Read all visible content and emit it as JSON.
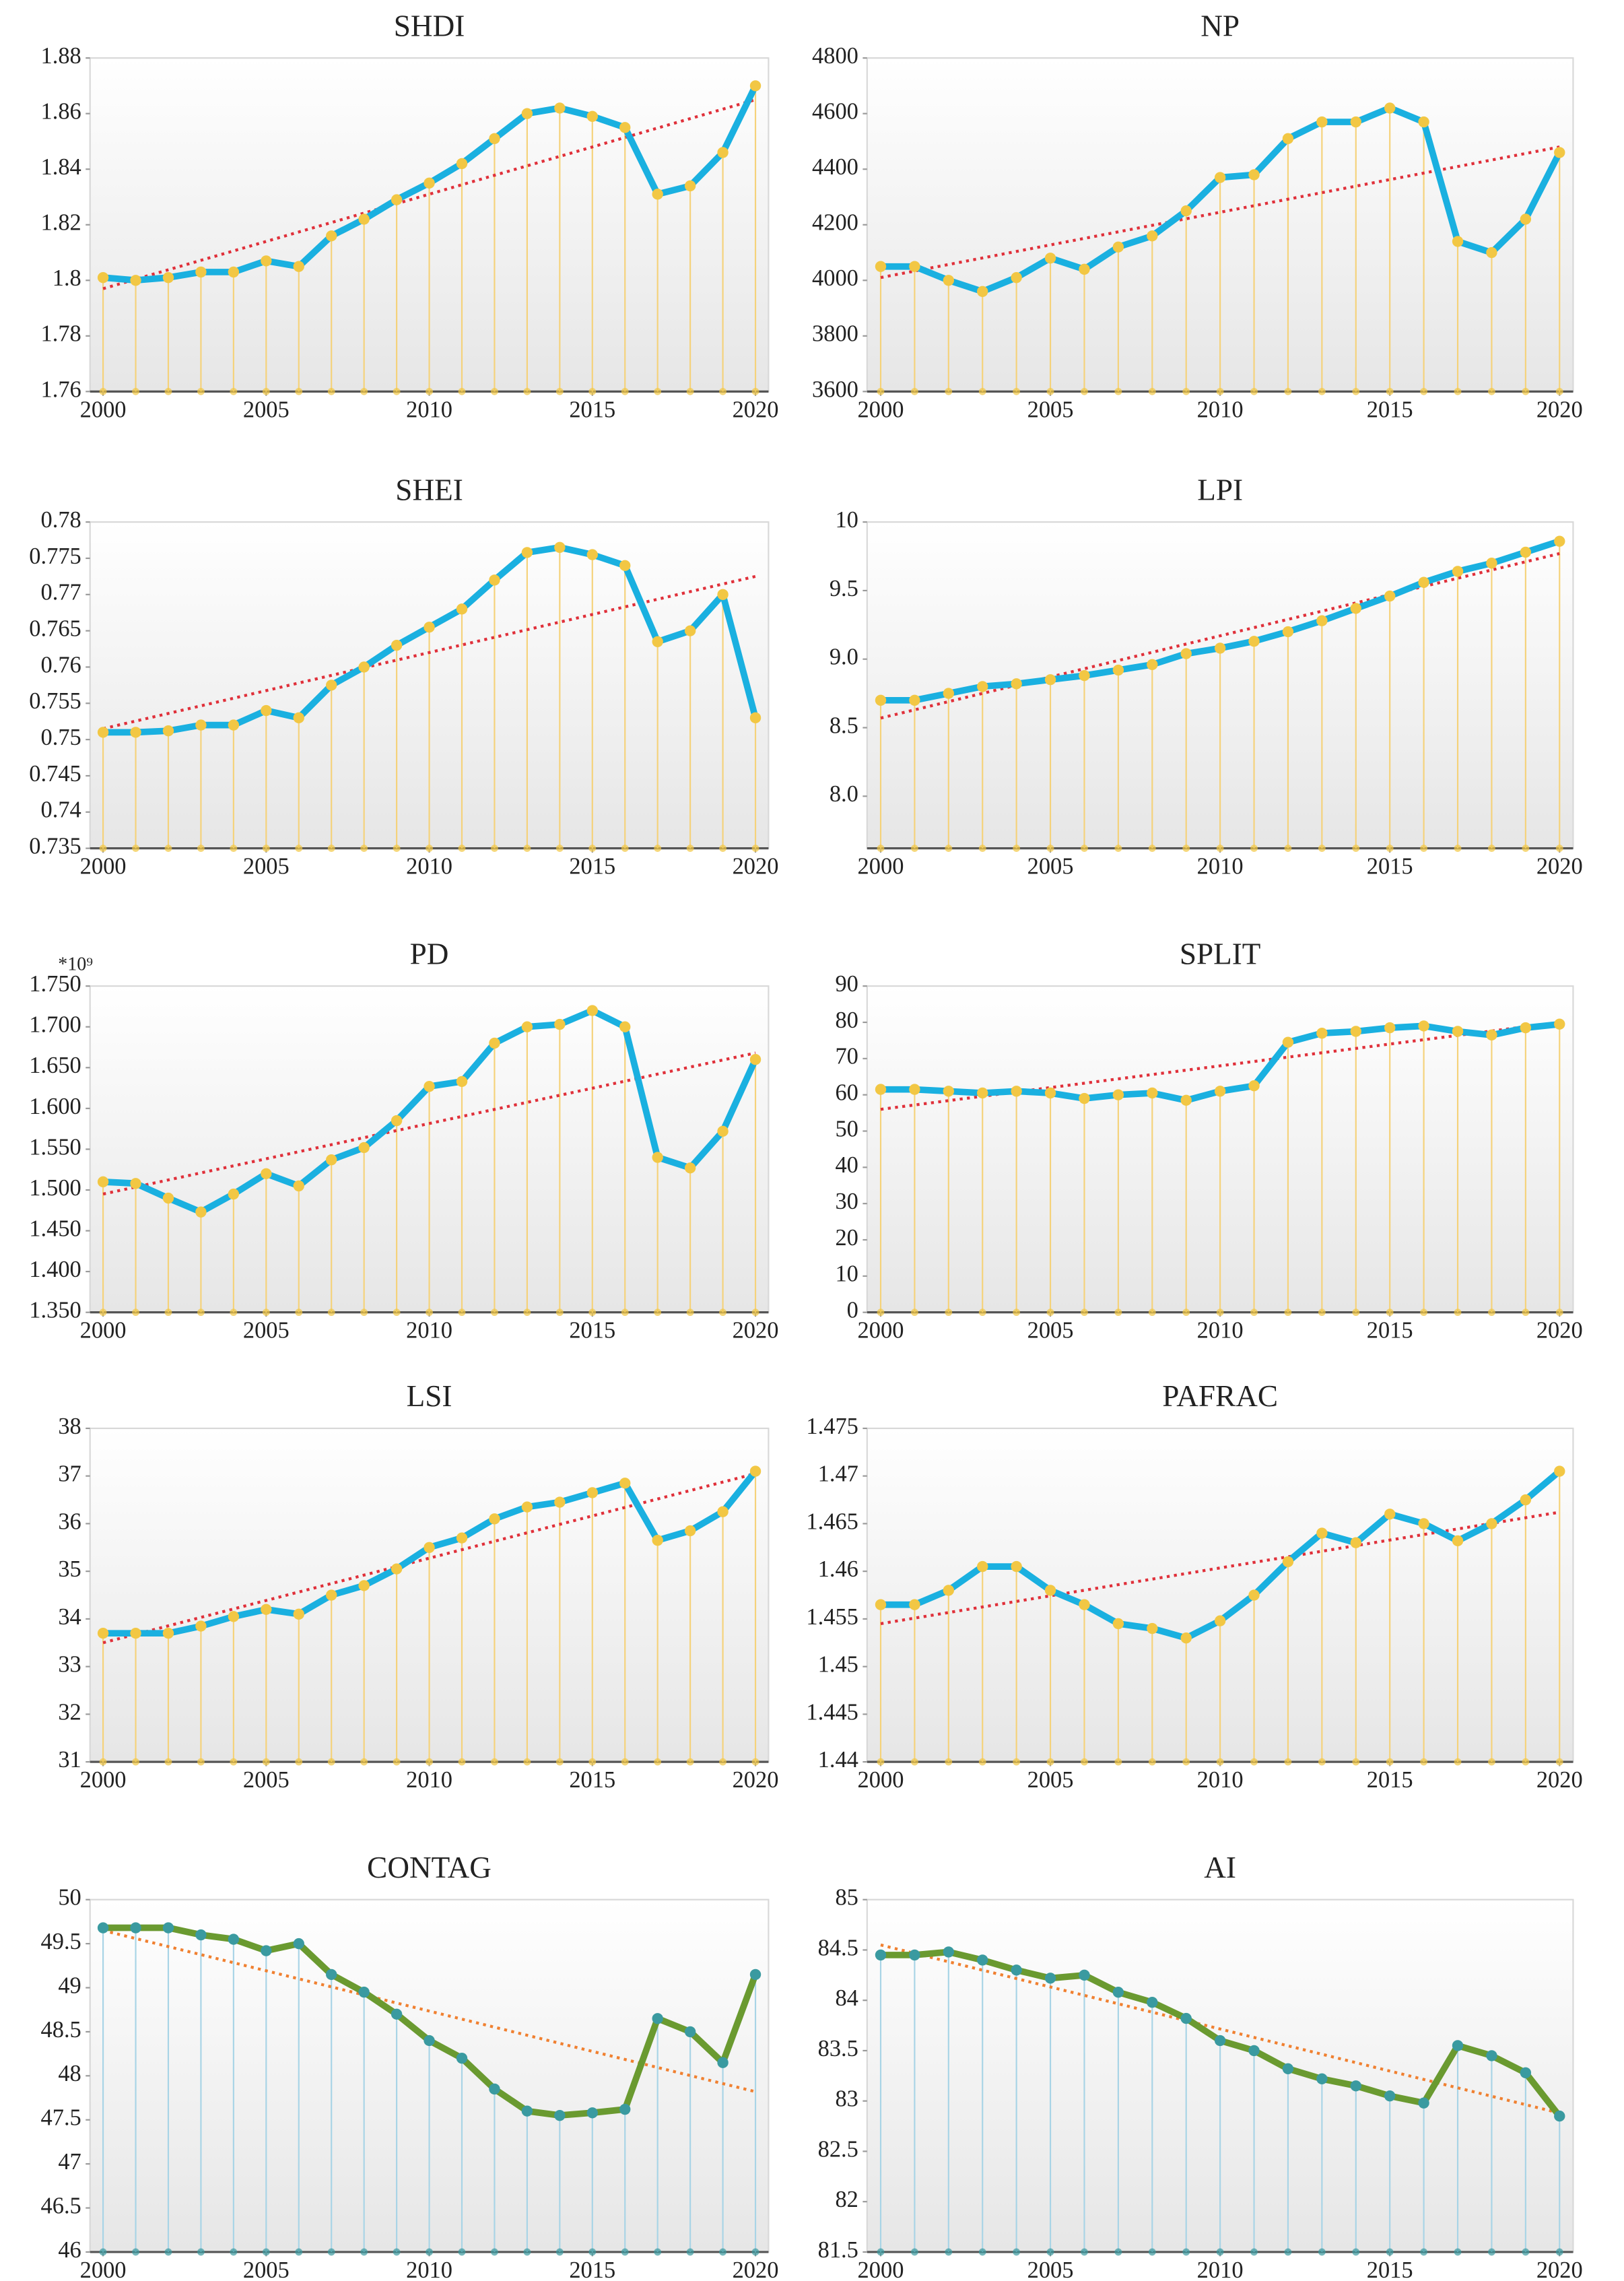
{
  "chart_data": [
    {
      "type": "line",
      "title": "SHDI",
      "x": [
        2000,
        2001,
        2002,
        2003,
        2004,
        2005,
        2006,
        2007,
        2008,
        2009,
        2010,
        2011,
        2012,
        2013,
        2014,
        2015,
        2016,
        2017,
        2018,
        2019,
        2020
      ],
      "values": [
        1.801,
        1.8,
        1.801,
        1.803,
        1.803,
        1.807,
        1.805,
        1.816,
        1.822,
        1.829,
        1.835,
        1.842,
        1.851,
        1.86,
        1.862,
        1.859,
        1.855,
        1.831,
        1.834,
        1.846,
        1.87
      ],
      "trend": [
        1.797,
        1.865
      ],
      "color": "#1ab0e0",
      "marker_color": "#f2c744",
      "drop_color": "#f5d27a",
      "trend_color": "#e0303a",
      "xlim": [
        1999.6,
        2020.4
      ],
      "xticks": [
        2000,
        2005,
        2010,
        2015,
        2020
      ],
      "ylim": [
        1.76,
        1.88
      ],
      "yticks": [
        1.76,
        1.78,
        1.8,
        1.82,
        1.84,
        1.86,
        1.88
      ]
    },
    {
      "type": "line",
      "title": "NP",
      "x": [
        2000,
        2001,
        2002,
        2003,
        2004,
        2005,
        2006,
        2007,
        2008,
        2009,
        2010,
        2011,
        2012,
        2013,
        2014,
        2015,
        2016,
        2017,
        2018,
        2019,
        2020
      ],
      "values": [
        4050,
        4050,
        4000,
        3960,
        4010,
        4080,
        4040,
        4120,
        4160,
        4250,
        4370,
        4380,
        4510,
        4570,
        4570,
        4620,
        4570,
        4140,
        4100,
        4220,
        4460
      ],
      "trend": [
        4010,
        4480
      ],
      "color": "#1ab0e0",
      "marker_color": "#f2c744",
      "drop_color": "#f5d27a",
      "trend_color": "#e0303a",
      "xlim": [
        1999.6,
        2020.4
      ],
      "xticks": [
        2000,
        2005,
        2010,
        2015,
        2020
      ],
      "ylim": [
        3600,
        4800
      ],
      "yticks": [
        3600,
        3800,
        4000,
        4200,
        4400,
        4600,
        4800
      ]
    },
    {
      "type": "line",
      "title": "SHEI",
      "x": [
        2000,
        2001,
        2002,
        2003,
        2004,
        2005,
        2006,
        2007,
        2008,
        2009,
        2010,
        2011,
        2012,
        2013,
        2014,
        2015,
        2016,
        2017,
        2018,
        2019,
        2020
      ],
      "values": [
        0.751,
        0.751,
        0.7512,
        0.752,
        0.752,
        0.754,
        0.753,
        0.7575,
        0.76,
        0.763,
        0.7655,
        0.768,
        0.772,
        0.7758,
        0.7765,
        0.7755,
        0.774,
        0.7635,
        0.765,
        0.77,
        0.753
      ],
      "trend": [
        0.7515,
        0.7725
      ],
      "color": "#1ab0e0",
      "marker_color": "#f2c744",
      "drop_color": "#f5d27a",
      "trend_color": "#e0303a",
      "xlim": [
        1999.6,
        2020.4
      ],
      "xticks": [
        2000,
        2005,
        2010,
        2015,
        2020
      ],
      "ylim": [
        0.735,
        0.78
      ],
      "yticks": [
        0.735,
        0.74,
        0.745,
        0.75,
        0.755,
        0.76,
        0.765,
        0.77,
        0.775,
        0.78
      ]
    },
    {
      "type": "line",
      "title": "LPI",
      "x": [
        2000,
        2001,
        2002,
        2003,
        2004,
        2005,
        2006,
        2007,
        2008,
        2009,
        2010,
        2011,
        2012,
        2013,
        2014,
        2015,
        2016,
        2017,
        2018,
        2019,
        2020
      ],
      "values": [
        8.7,
        8.7,
        8.75,
        8.8,
        8.82,
        8.85,
        8.88,
        8.92,
        8.96,
        9.04,
        9.08,
        9.13,
        9.2,
        9.28,
        9.37,
        9.46,
        9.56,
        9.64,
        9.7,
        9.78,
        9.86
      ],
      "trend": [
        8.57,
        9.77
      ],
      "color": "#1ab0e0",
      "marker_color": "#f2c744",
      "drop_color": "#f5d27a",
      "trend_color": "#e0303a",
      "xlim": [
        1999.6,
        2020.4
      ],
      "xticks": [
        2000,
        2005,
        2010,
        2015,
        2020
      ],
      "ylim": [
        7.62,
        10
      ],
      "yticks": [
        {
          "value": 8,
          "label": "8.0"
        },
        8.5,
        {
          "value": 9,
          "label": "9.0"
        },
        9.5,
        10
      ]
    },
    {
      "type": "line",
      "title": "PD",
      "annotation": "*10⁹",
      "x": [
        2000,
        2001,
        2002,
        2003,
        2004,
        2005,
        2006,
        2007,
        2008,
        2009,
        2010,
        2011,
        2012,
        2013,
        2014,
        2015,
        2016,
        2017,
        2018,
        2019,
        2020
      ],
      "values": [
        1.51,
        1.508,
        1.49,
        1.473,
        1.495,
        1.52,
        1.505,
        1.537,
        1.552,
        1.585,
        1.627,
        1.633,
        1.68,
        1.7,
        1.703,
        1.72,
        1.7,
        1.54,
        1.527,
        1.572,
        1.66
      ],
      "trend": [
        1.495,
        1.668
      ],
      "color": "#1ab0e0",
      "marker_color": "#f2c744",
      "drop_color": "#f5d27a",
      "trend_color": "#e0303a",
      "xlim": [
        1999.6,
        2020.4
      ],
      "xticks": [
        2000,
        2005,
        2010,
        2015,
        2020
      ],
      "ylim": [
        1.35,
        1.75
      ],
      "yticks": [
        {
          "value": 1.35,
          "label": "1.350"
        },
        {
          "value": 1.4,
          "label": "1.400"
        },
        {
          "value": 1.45,
          "label": "1.450"
        },
        {
          "value": 1.5,
          "label": "1.500"
        },
        {
          "value": 1.55,
          "label": "1.550"
        },
        {
          "value": 1.6,
          "label": "1.600"
        },
        {
          "value": 1.65,
          "label": "1.650"
        },
        {
          "value": 1.7,
          "label": "1.700"
        },
        {
          "value": 1.75,
          "label": "1.750"
        }
      ]
    },
    {
      "type": "line",
      "title": "SPLIT",
      "x": [
        2000,
        2001,
        2002,
        2003,
        2004,
        2005,
        2006,
        2007,
        2008,
        2009,
        2010,
        2011,
        2012,
        2013,
        2014,
        2015,
        2016,
        2017,
        2018,
        2019,
        2020
      ],
      "values": [
        61.5,
        61.5,
        61,
        60.5,
        61,
        60.5,
        59,
        60,
        60.5,
        58.5,
        61,
        62.5,
        74.5,
        77,
        77.5,
        78.5,
        79,
        77.5,
        76.5,
        78.5,
        79.5
      ],
      "trend": [
        56,
        80
      ],
      "color": "#1ab0e0",
      "marker_color": "#f2c744",
      "drop_color": "#f5d27a",
      "trend_color": "#e0303a",
      "xlim": [
        1999.6,
        2020.4
      ],
      "xticks": [
        2000,
        2005,
        2010,
        2015,
        2020
      ],
      "ylim": [
        0,
        90
      ],
      "yticks": [
        0,
        10,
        20,
        30,
        40,
        50,
        60,
        70,
        80,
        90
      ]
    },
    {
      "type": "line",
      "title": "LSI",
      "x": [
        2000,
        2001,
        2002,
        2003,
        2004,
        2005,
        2006,
        2007,
        2008,
        2009,
        2010,
        2011,
        2012,
        2013,
        2014,
        2015,
        2016,
        2017,
        2018,
        2019,
        2020
      ],
      "values": [
        33.7,
        33.7,
        33.7,
        33.85,
        34.05,
        34.2,
        34.1,
        34.5,
        34.7,
        35.05,
        35.5,
        35.7,
        36.1,
        36.35,
        36.45,
        36.65,
        36.85,
        35.65,
        35.85,
        36.25,
        37.1
      ],
      "trend": [
        33.5,
        37.05
      ],
      "color": "#1ab0e0",
      "marker_color": "#f2c744",
      "drop_color": "#f5d27a",
      "trend_color": "#e0303a",
      "xlim": [
        1999.6,
        2020.4
      ],
      "xticks": [
        2000,
        2005,
        2010,
        2015,
        2020
      ],
      "ylim": [
        31,
        38
      ],
      "yticks": [
        31,
        32,
        33,
        34,
        35,
        36,
        37,
        38
      ]
    },
    {
      "type": "line",
      "title": "PAFRAC",
      "x": [
        2000,
        2001,
        2002,
        2003,
        2004,
        2005,
        2006,
        2007,
        2008,
        2009,
        2010,
        2011,
        2012,
        2013,
        2014,
        2015,
        2016,
        2017,
        2018,
        2019,
        2020
      ],
      "values": [
        1.4565,
        1.4565,
        1.458,
        1.4605,
        1.4605,
        1.458,
        1.4565,
        1.4545,
        1.454,
        1.453,
        1.4548,
        1.4575,
        1.461,
        1.464,
        1.463,
        1.466,
        1.465,
        1.4632,
        1.465,
        1.4675,
        1.4705
      ],
      "trend": [
        1.4545,
        1.4662
      ],
      "color": "#1ab0e0",
      "marker_color": "#f2c744",
      "drop_color": "#f5d27a",
      "trend_color": "#e0303a",
      "xlim": [
        1999.6,
        2020.4
      ],
      "xticks": [
        2000,
        2005,
        2010,
        2015,
        2020
      ],
      "ylim": [
        1.44,
        1.475
      ],
      "yticks": [
        1.44,
        1.445,
        1.45,
        1.455,
        1.46,
        1.465,
        1.47,
        1.475
      ]
    },
    {
      "type": "line",
      "title": "CONTAG",
      "x": [
        2000,
        2001,
        2002,
        2003,
        2004,
        2005,
        2006,
        2007,
        2008,
        2009,
        2010,
        2011,
        2012,
        2013,
        2014,
        2015,
        2016,
        2017,
        2018,
        2019,
        2020
      ],
      "values": [
        49.68,
        49.68,
        49.68,
        49.6,
        49.55,
        49.42,
        49.5,
        49.15,
        48.95,
        48.7,
        48.4,
        48.2,
        47.85,
        47.6,
        47.55,
        47.58,
        47.62,
        48.65,
        48.5,
        48.15,
        49.15
      ],
      "trend": [
        49.65,
        47.82
      ],
      "color": "#6a9a30",
      "marker_color": "#3a9aa0",
      "drop_color": "#a8d4e6",
      "trend_color": "#f08030",
      "xlim": [
        1999.6,
        2020.4
      ],
      "xticks": [
        2000,
        2005,
        2010,
        2015,
        2020
      ],
      "ylim": [
        46,
        50
      ],
      "yticks": [
        46,
        46.5,
        47,
        47.5,
        48,
        48.5,
        49,
        49.5,
        50
      ]
    },
    {
      "type": "line",
      "title": "AI",
      "x": [
        2000,
        2001,
        2002,
        2003,
        2004,
        2005,
        2006,
        2007,
        2008,
        2009,
        2010,
        2011,
        2012,
        2013,
        2014,
        2015,
        2016,
        2017,
        2018,
        2019,
        2020
      ],
      "values": [
        84.45,
        84.45,
        84.48,
        84.4,
        84.3,
        84.22,
        84.25,
        84.08,
        83.98,
        83.82,
        83.6,
        83.5,
        83.32,
        83.22,
        83.15,
        83.05,
        82.98,
        83.55,
        83.45,
        83.28,
        82.85
      ],
      "trend": [
        84.55,
        82.88
      ],
      "color": "#6a9a30",
      "marker_color": "#3a9aa0",
      "drop_color": "#a8d4e6",
      "trend_color": "#f08030",
      "xlim": [
        1999.6,
        2020.4
      ],
      "xticks": [
        2000,
        2005,
        2010,
        2015,
        2020
      ],
      "ylim": [
        81.5,
        85
      ],
      "yticks": [
        81.5,
        82,
        82.5,
        83,
        83.5,
        84,
        84.5,
        85
      ]
    }
  ]
}
